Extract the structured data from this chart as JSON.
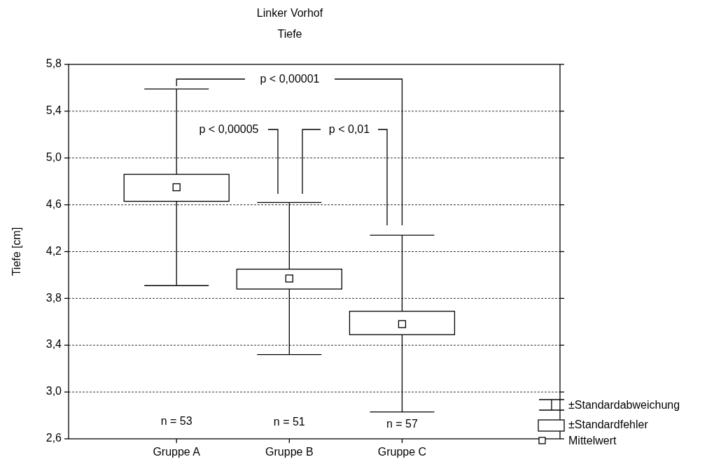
{
  "chart_data": {
    "type": "box",
    "title": "Linker Vorhof",
    "subtitle": "Tiefe",
    "ylabel": "Tiefe [cm]",
    "categories": [
      "Gruppe A",
      "Gruppe B",
      "Gruppe C"
    ],
    "boxes": [
      {
        "low": 3.91,
        "q1": 4.63,
        "median": 4.75,
        "q3": 4.86,
        "high": 5.59
      },
      {
        "low": 3.32,
        "q1": 3.88,
        "median": 3.97,
        "q3": 4.05,
        "high": 4.62
      },
      {
        "low": 2.83,
        "q1": 3.49,
        "median": 3.58,
        "q3": 3.69,
        "high": 4.34
      }
    ],
    "color": "#000000",
    "ylim": [
      2.6,
      5.8
    ],
    "yticks": [
      {
        "value": 2.6,
        "label": "2,6"
      },
      {
        "value": 3.0,
        "label": "3,0"
      },
      {
        "value": 3.4,
        "label": "3,4"
      },
      {
        "value": 3.8,
        "label": "3,8"
      },
      {
        "value": 4.2,
        "label": "4,2"
      },
      {
        "value": 4.6,
        "label": "4,6"
      },
      {
        "value": 5.0,
        "label": "5,0"
      },
      {
        "value": 5.4,
        "label": "5,4"
      },
      {
        "value": 5.8,
        "label": "5,8"
      }
    ],
    "grid": "y",
    "annotations": [
      "p < 0,00001",
      "p < 0,00005",
      "p < 0,01",
      "n = 53",
      "n = 51",
      "n = 57",
      "±Standardabweichung",
      "±Standardfehler",
      "Mittelwert"
    ]
  }
}
